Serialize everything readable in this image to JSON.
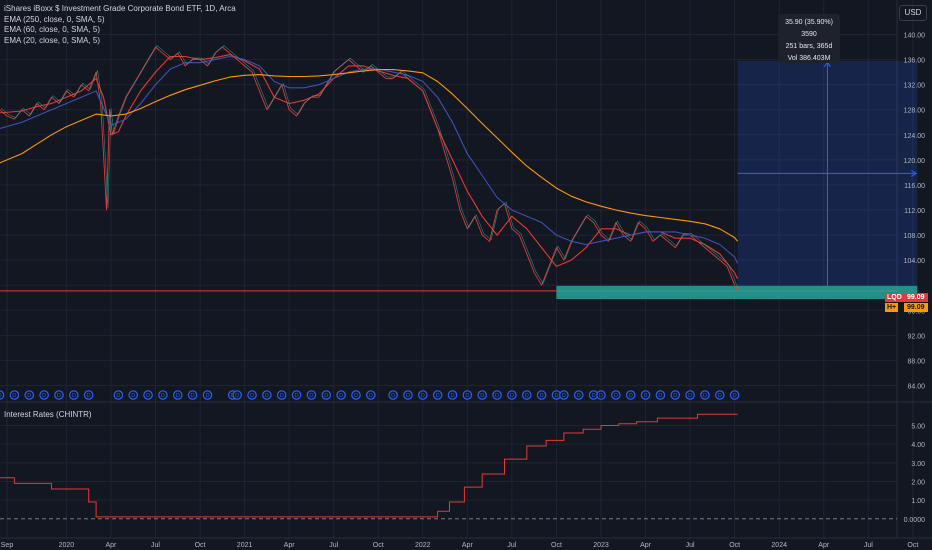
{
  "chart_data": [
    {
      "type": "line",
      "title": "iShares iBoxx $ Investment Grade Corporate Bond ETF, 1D, Arca",
      "currency": "USD",
      "ylim": [
        82,
        142
      ],
      "y_ticks": [
        84,
        88,
        92,
        96,
        100,
        104,
        108,
        112,
        116,
        120,
        124,
        128,
        132,
        136,
        140
      ],
      "y_tick_labels": [
        "84.00",
        "88.00",
        "92.00",
        "96.00",
        "100.00",
        "104.00",
        "108.00",
        "112.00",
        "116.00",
        "120.00",
        "124.00",
        "128.00",
        "132.00",
        "136.00",
        "140.00"
      ],
      "x_ticks": [
        {
          "t": 0,
          "label": "Sep"
        },
        {
          "t": 4,
          "label": "2020"
        },
        {
          "t": 7,
          "label": "Apr"
        },
        {
          "t": 10,
          "label": "Jul"
        },
        {
          "t": 13,
          "label": "Oct"
        },
        {
          "t": 16,
          "label": "2021"
        },
        {
          "t": 19,
          "label": "Apr"
        },
        {
          "t": 22,
          "label": "Jul"
        },
        {
          "t": 25,
          "label": "Oct"
        },
        {
          "t": 28,
          "label": "2022"
        },
        {
          "t": 31,
          "label": "Apr"
        },
        {
          "t": 34,
          "label": "Jul"
        },
        {
          "t": 37,
          "label": "Oct"
        },
        {
          "t": 40,
          "label": "2023"
        },
        {
          "t": 43,
          "label": "Apr"
        },
        {
          "t": 46,
          "label": "Jul"
        },
        {
          "t": 49,
          "label": "Oct"
        },
        {
          "t": 52,
          "label": "2024"
        },
        {
          "t": 55,
          "label": "Apr"
        },
        {
          "t": 58,
          "label": "Jul"
        },
        {
          "t": 61,
          "label": "Oct"
        }
      ],
      "series": [
        {
          "name": "LQD",
          "color": "#e53935",
          "kind": "price",
          "x": [
            -0.5,
            0,
            0.5,
            1,
            1.5,
            2,
            2.5,
            3,
            3.5,
            4,
            4.5,
            5,
            5.5,
            6,
            6.3,
            6.5,
            6.7,
            6.9,
            7.1,
            7.5,
            8,
            8.5,
            9,
            9.5,
            10,
            10.5,
            11,
            11.5,
            12,
            12.5,
            13,
            13.5,
            14,
            14.5,
            15,
            15.5,
            16,
            16.5,
            17,
            17.5,
            18,
            18.5,
            19,
            19.5,
            20,
            20.5,
            21,
            21.5,
            22,
            22.5,
            23,
            23.5,
            24,
            24.5,
            25,
            25.5,
            26,
            26.5,
            27,
            27.5,
            28,
            28.5,
            29,
            29.5,
            30,
            30.5,
            31,
            31.5,
            32,
            32.5,
            33,
            33.5,
            34,
            34.5,
            35,
            35.5,
            36,
            36.5,
            37,
            37.5,
            38,
            38.5,
            39,
            39.5,
            40,
            40.5,
            41,
            41.5,
            42,
            42.5,
            43,
            43.5,
            44,
            44.5,
            45,
            45.5,
            46,
            46.5,
            47,
            47.5,
            48,
            48.5,
            49,
            49.2
          ],
          "y": [
            128,
            127,
            126.5,
            128,
            127,
            129,
            128,
            130,
            129,
            131,
            130,
            132,
            131,
            134,
            129,
            121,
            112,
            128,
            124,
            127,
            130,
            132,
            134,
            136,
            138,
            137,
            136,
            137,
            135,
            136,
            136,
            135,
            137,
            138,
            137,
            136,
            135,
            134,
            131,
            128,
            130,
            132,
            128,
            127,
            129,
            130,
            130,
            132,
            134,
            135,
            136,
            135,
            134,
            135,
            134,
            133,
            133,
            134,
            133,
            132,
            131,
            128,
            125,
            121,
            117,
            112,
            109,
            111,
            108,
            107,
            112,
            113,
            109,
            108,
            105,
            102,
            100,
            103,
            106,
            104,
            107,
            109,
            111,
            110,
            108,
            107,
            110,
            108,
            107,
            110,
            109,
            107,
            108,
            107,
            106,
            108,
            108,
            107,
            106,
            105,
            104,
            103,
            100,
            99.1
          ]
        },
        {
          "name": "EMA (20, close, 0, SMA, 5)",
          "color": "#e53935",
          "kind": "ema",
          "x": [
            -0.5,
            1,
            2,
            3,
            4,
            5,
            6,
            6.5,
            7,
            7.5,
            8,
            9,
            10,
            11,
            12,
            13,
            14,
            15,
            16,
            17,
            18,
            19,
            20,
            21,
            22,
            23,
            24,
            25,
            26,
            27,
            28,
            29,
            30,
            31,
            32,
            33,
            34,
            35,
            36,
            37,
            38,
            39,
            40,
            41,
            42,
            43,
            44,
            45,
            46,
            47,
            48,
            49,
            49.2
          ],
          "y": [
            127.5,
            127.8,
            128.5,
            129,
            130,
            131,
            133,
            130,
            124,
            124.5,
            127,
            131,
            134,
            136.5,
            136.5,
            136,
            136.3,
            136.8,
            135.8,
            134.5,
            130,
            129,
            129.5,
            130.5,
            133,
            135,
            135,
            134.2,
            133.5,
            133,
            131,
            125,
            120,
            115,
            111,
            108,
            111,
            109,
            106,
            103,
            104,
            106,
            109,
            109,
            108,
            108.5,
            108.5,
            107.5,
            107.5,
            106.5,
            105,
            102,
            101
          ]
        },
        {
          "name": "EMA (60, close, 0, SMA, 5)",
          "color": "#3f51b5",
          "kind": "ema",
          "x": [
            -0.5,
            1,
            2,
            3,
            4,
            5,
            6,
            7,
            8,
            9,
            10,
            11,
            12,
            13,
            14,
            15,
            16,
            17,
            18,
            19,
            20,
            21,
            22,
            23,
            24,
            25,
            26,
            27,
            28,
            29,
            30,
            31,
            32,
            33,
            34,
            35,
            36,
            37,
            38,
            39,
            40,
            41,
            42,
            43,
            44,
            45,
            46,
            47,
            48,
            49,
            49.2
          ],
          "y": [
            125,
            126,
            127,
            128,
            129,
            130,
            131,
            125.5,
            126.5,
            129,
            132,
            134.5,
            135.5,
            135.5,
            136,
            136.5,
            136,
            135,
            132.5,
            131.5,
            131.5,
            132,
            133,
            134,
            134.5,
            134.5,
            134,
            133.5,
            132.5,
            130,
            126,
            121,
            117.5,
            114,
            112,
            111,
            110,
            108,
            107,
            106.5,
            107,
            107.5,
            108,
            108.5,
            108.5,
            108.5,
            108,
            107.5,
            106.5,
            104.5,
            103.5
          ]
        },
        {
          "name": "EMA (250, close, 0, SMA, 5)",
          "color": "#ff9800",
          "kind": "ema",
          "x": [
            -0.5,
            1,
            2,
            3,
            4,
            5,
            6,
            7,
            8,
            9,
            10,
            11,
            12,
            13,
            14,
            15,
            16,
            17,
            18,
            19,
            20,
            21,
            22,
            23,
            24,
            25,
            26,
            27,
            28,
            29,
            30,
            31,
            32,
            33,
            34,
            35,
            36,
            37,
            38,
            39,
            40,
            41,
            42,
            43,
            44,
            45,
            46,
            47,
            48,
            49,
            49.2
          ],
          "y": [
            119.5,
            121,
            122.5,
            124,
            125.3,
            126.3,
            127.3,
            127,
            127.3,
            128.2,
            129.3,
            130.3,
            131.2,
            131.9,
            132.6,
            133.2,
            133.5,
            133.6,
            133.4,
            133.3,
            133.3,
            133.4,
            133.6,
            133.9,
            134.2,
            134.4,
            134.4,
            134.2,
            133.9,
            132.5,
            130.5,
            128.2,
            125.8,
            123.5,
            121.2,
            119,
            117.2,
            115.5,
            114.2,
            113.3,
            112.6,
            112,
            111.5,
            111.1,
            110.8,
            110.5,
            110.2,
            109.8,
            109,
            107.6,
            107
          ]
        }
      ],
      "horizontal_lines": [
        {
          "name": "last-price-line",
          "y": 99.09,
          "color": "#e53935"
        }
      ],
      "zone": {
        "x0": 37,
        "x1": 61.3,
        "y0": 97.8,
        "y1": 99.9,
        "color": "#26a69a"
      },
      "measure": {
        "x0": 49.2,
        "x1": 61.3,
        "y0": 99.9,
        "y1": 135.8
      },
      "tooltip": [
        "35.90 (35.90%) 3590",
        "251 bars, 365d",
        "Vol 386.403M"
      ],
      "price_tags": [
        {
          "label": "LQD",
          "value": "99.09",
          "color": "#e53935"
        },
        {
          "label": "H+",
          "value": "99.09",
          "color": "#ff9800"
        }
      ],
      "event_markers": [
        -0.5,
        0.5,
        1.5,
        2.5,
        3.5,
        4.5,
        5.5,
        7.5,
        8.5,
        9.5,
        10.5,
        11.5,
        12.5,
        13.5,
        15.2,
        15.5,
        16.5,
        17.5,
        18.5,
        19.5,
        20.5,
        21.5,
        22.5,
        23.5,
        24.5,
        26,
        27,
        28,
        29,
        30,
        31,
        32,
        33,
        34,
        35,
        36,
        37,
        37.5,
        38.5,
        39.5,
        40,
        41,
        42,
        43,
        44,
        45,
        46,
        47,
        48,
        49
      ],
      "event_marker_label": "D"
    },
    {
      "type": "line",
      "title": "Interest Rates (CHINTR)",
      "ylim": [
        -0.6,
        6.1
      ],
      "y_ticks": [
        0,
        1,
        2,
        3,
        4,
        5
      ],
      "y_tick_labels": [
        "0.0000",
        "1.00",
        "2.00",
        "3.00",
        "4.00",
        "5.00"
      ],
      "series": [
        {
          "name": "CHINTR",
          "color": "#e53935",
          "kind": "step",
          "x": [
            -0.5,
            0.5,
            0.5,
            3,
            3,
            5.5,
            5.5,
            6,
            6,
            29,
            29,
            29.8,
            29.8,
            30.8,
            30.8,
            32,
            32,
            33.5,
            33.5,
            35,
            35,
            36.3,
            36.3,
            37.5,
            37.5,
            38.8,
            38.8,
            40,
            40,
            41.2,
            41.2,
            42.4,
            42.4,
            43.8,
            43.8,
            46.5,
            46.5,
            49.2
          ],
          "y": [
            2.2,
            2.2,
            1.9,
            1.9,
            1.6,
            1.6,
            0.9,
            0.9,
            0.1,
            0.1,
            0.4,
            0.4,
            0.9,
            0.9,
            1.7,
            1.7,
            2.4,
            2.4,
            3.2,
            3.2,
            3.9,
            3.9,
            4.2,
            4.2,
            4.6,
            4.6,
            4.8,
            4.8,
            5.0,
            5.0,
            5.1,
            5.1,
            5.2,
            5.2,
            5.4,
            5.4,
            5.6,
            5.6
          ]
        }
      ],
      "baseline": 0
    }
  ]
}
